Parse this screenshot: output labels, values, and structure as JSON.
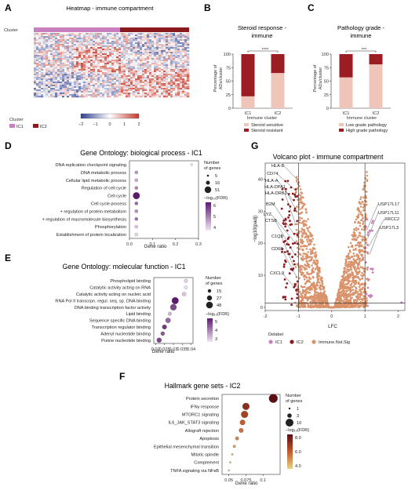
{
  "panels": {
    "A": {
      "letter": "A",
      "title": "Heatmap - immune compartment",
      "row_label": "Cluster",
      "legend_title": "Cluster",
      "legend_items": [
        "IC1",
        "IC2"
      ],
      "scale_ticks": [
        "−2",
        "−1",
        "0",
        "1",
        "2"
      ]
    },
    "B": {
      "letter": "B",
      "title_line1": "Steroid response -",
      "title_line2": "immune",
      "ylabel_line1": "Percentage of",
      "ylabel_line2": "ADs/cluster",
      "xlabel": "Immune cluster",
      "significance": "****",
      "legend": [
        "Steroid sensitive",
        "Steroid resistant"
      ]
    },
    "C": {
      "letter": "C",
      "title_line1": "Pathology grade -",
      "title_line2": "immune",
      "ylabel_line1": "Percentage of",
      "ylabel_line2": "ADs/cluster",
      "xlabel": "Immune cluster",
      "significance": "***",
      "legend": [
        "Low grade pathology",
        "High grade pathology"
      ]
    },
    "D": {
      "letter": "D",
      "title": "Gene Ontology: biological process - IC1",
      "xlabel": "Gene ratio",
      "size_legend_title_1": "Number",
      "size_legend_title_2": "of genes",
      "size_legend_values": [
        "5",
        "16",
        "51"
      ],
      "color_legend_title": "−log₁₀(FDR)",
      "color_ticks": [
        "6",
        "5",
        "4"
      ]
    },
    "E": {
      "letter": "E",
      "title": "Gene Ontology: molecular function - IC1",
      "xlabel": "Gene ratio",
      "size_legend_title_1": "Number",
      "size_legend_title_2": "of genes",
      "size_legend_values": [
        "15",
        "27",
        "48"
      ],
      "color_legend_title": "−log₁₀(FDR)",
      "color_ticks": [
        "5",
        "4",
        "3"
      ]
    },
    "F": {
      "letter": "F",
      "title": "Hallmark gene sets - IC2",
      "xlabel": "Gene ratio",
      "size_legend_title_1": "Number",
      "size_legend_title_2": "of genes",
      "size_legend_values": [
        "1",
        "3",
        "10"
      ],
      "color_legend_title": "−log₁₀(FDR)",
      "color_ticks": [
        "8.0",
        "6.0",
        "4.0"
      ]
    },
    "G": {
      "letter": "G",
      "title": "Volcano plot - immune compartment",
      "ylabel": "−log10(padj)",
      "xlabel": "LFC",
      "legend_title": "Delabel",
      "legend": [
        "IC1",
        "IC2",
        "Immune.Not.Sig"
      ],
      "left_genes": [
        "HLA-B",
        "CD74",
        "HLA-A",
        "HLA-DPA1",
        "HLA-DRB1",
        "B2M",
        "LYZ",
        "CTSB",
        "C1QB",
        "CD68",
        "CXCL9"
      ],
      "right_genes": [
        "USP17L17",
        "USP17L11",
        "XRCC2",
        "USP17L3"
      ]
    }
  },
  "colors": {
    "ic1": "#c97fc0",
    "ic2": "#8b1a1f",
    "notsig": "#d9926a",
    "resistant": "#9b1c22",
    "sensitive": "#efc4b9",
    "hm_red": "#c53a2c",
    "hm_blue": "#2e3f8f"
  },
  "chart_data": [
    {
      "panel": "B",
      "type": "bar",
      "stacked": true,
      "categories": [
        "IC1",
        "IC2"
      ],
      "ylim": [
        0,
        100
      ],
      "yticks": [
        0,
        25,
        50,
        75,
        100
      ],
      "series": [
        {
          "name": "Steroid sensitive",
          "values": [
            22,
            65
          ]
        },
        {
          "name": "Steroid resistant",
          "values": [
            78,
            35
          ]
        }
      ]
    },
    {
      "panel": "C",
      "type": "bar",
      "stacked": true,
      "categories": [
        "IC1",
        "IC2"
      ],
      "ylim": [
        0,
        100
      ],
      "yticks": [
        0,
        25,
        50,
        75,
        100
      ],
      "series": [
        {
          "name": "Low grade pathology",
          "values": [
            57,
            81
          ]
        },
        {
          "name": "High grade pathology",
          "values": [
            43,
            19
          ]
        }
      ]
    },
    {
      "panel": "D",
      "type": "scatter",
      "terms": [
        "DNA replication checkpoint signaling",
        "DNA metabolic process",
        "Cellular lipid metabolic process",
        "Regulation of cell cycle",
        "Cell cycle",
        "Cell cycle process",
        "+ regulation of protein metabolism",
        "+ regulation of macromolecule biosynthesis",
        "Phosphorylation",
        "Establishment of protein localization"
      ],
      "x": [
        0.27,
        0.03,
        0.03,
        0.03,
        0.03,
        0.03,
        0.03,
        0.03,
        0.03,
        0.03
      ],
      "size": [
        5,
        16,
        16,
        16,
        51,
        16,
        16,
        16,
        16,
        16
      ],
      "fdr": [
        4.0,
        4.8,
        4.6,
        5.0,
        6.2,
        5.3,
        4.9,
        5.2,
        4.3,
        4.1
      ],
      "xlim": [
        0,
        0.3
      ],
      "xticks": [
        0.0,
        0.1,
        0.2,
        0.3
      ]
    },
    {
      "panel": "E",
      "type": "scatter",
      "terms": [
        "Phospholipid binding",
        "Catalytic activity acting on RNA",
        "Catalytic activity acting on nucleic acid",
        "RNA Pol II transcrpn. regul. seq. sp. DNA binding",
        "DNA binding transcription factor activity",
        "Lipid binding",
        "Sequence specific DNA binding",
        "Transcription regulator binding",
        "Adenyl nucleotide binding",
        "Purine nucleotide binding"
      ],
      "x": [
        0.037,
        0.037,
        0.036,
        0.031,
        0.03,
        0.028,
        0.027,
        0.025,
        0.024,
        0.022
      ],
      "size": [
        15,
        15,
        20,
        45,
        40,
        15,
        30,
        25,
        20,
        27
      ],
      "fdr": [
        3.2,
        3.0,
        3.4,
        5.6,
        5.0,
        3.6,
        4.6,
        5.2,
        4.8,
        5.0
      ],
      "xlim": [
        0.019,
        0.041
      ],
      "xticks": [
        0.02,
        0.025,
        0.03,
        0.035,
        0.04
      ]
    },
    {
      "panel": "F",
      "type": "scatter",
      "terms": [
        "Protein secretion",
        "IFNγ response",
        "MTORC1 signaling",
        "IL6_JAK_STAT3 signaling",
        "Allograft rejection",
        "Apoptosis",
        "Epithelial mesenchymal transition",
        "Mitotic spindle",
        "Complement",
        "TNFA signaling via NFκB"
      ],
      "x": [
        0.115,
        0.075,
        0.073,
        0.07,
        0.068,
        0.062,
        0.058,
        0.055,
        0.052,
        0.05
      ],
      "size": [
        10,
        8,
        8,
        6,
        5,
        4,
        3,
        2,
        2,
        2
      ],
      "fdr": [
        8.6,
        7.6,
        7.0,
        6.3,
        5.9,
        5.5,
        5.0,
        4.6,
        4.3,
        4.1
      ],
      "xlim": [
        0.04,
        0.125
      ],
      "xticks": [
        0.05,
        0.075,
        0.1
      ]
    },
    {
      "panel": "G",
      "type": "scatter",
      "xlim": [
        -2,
        2.2
      ],
      "ylim": [
        -1,
        45
      ],
      "xticks": [
        -2,
        -1,
        0,
        1,
        2
      ],
      "yticks": [
        0,
        10,
        20,
        30,
        40
      ],
      "threshold_x": [
        -1,
        1
      ],
      "threshold_y": 1.3,
      "series": [
        {
          "name": "IC1",
          "points": []
        },
        {
          "name": "IC2",
          "points": []
        },
        {
          "name": "Immune.Not.Sig",
          "points": []
        }
      ]
    }
  ]
}
